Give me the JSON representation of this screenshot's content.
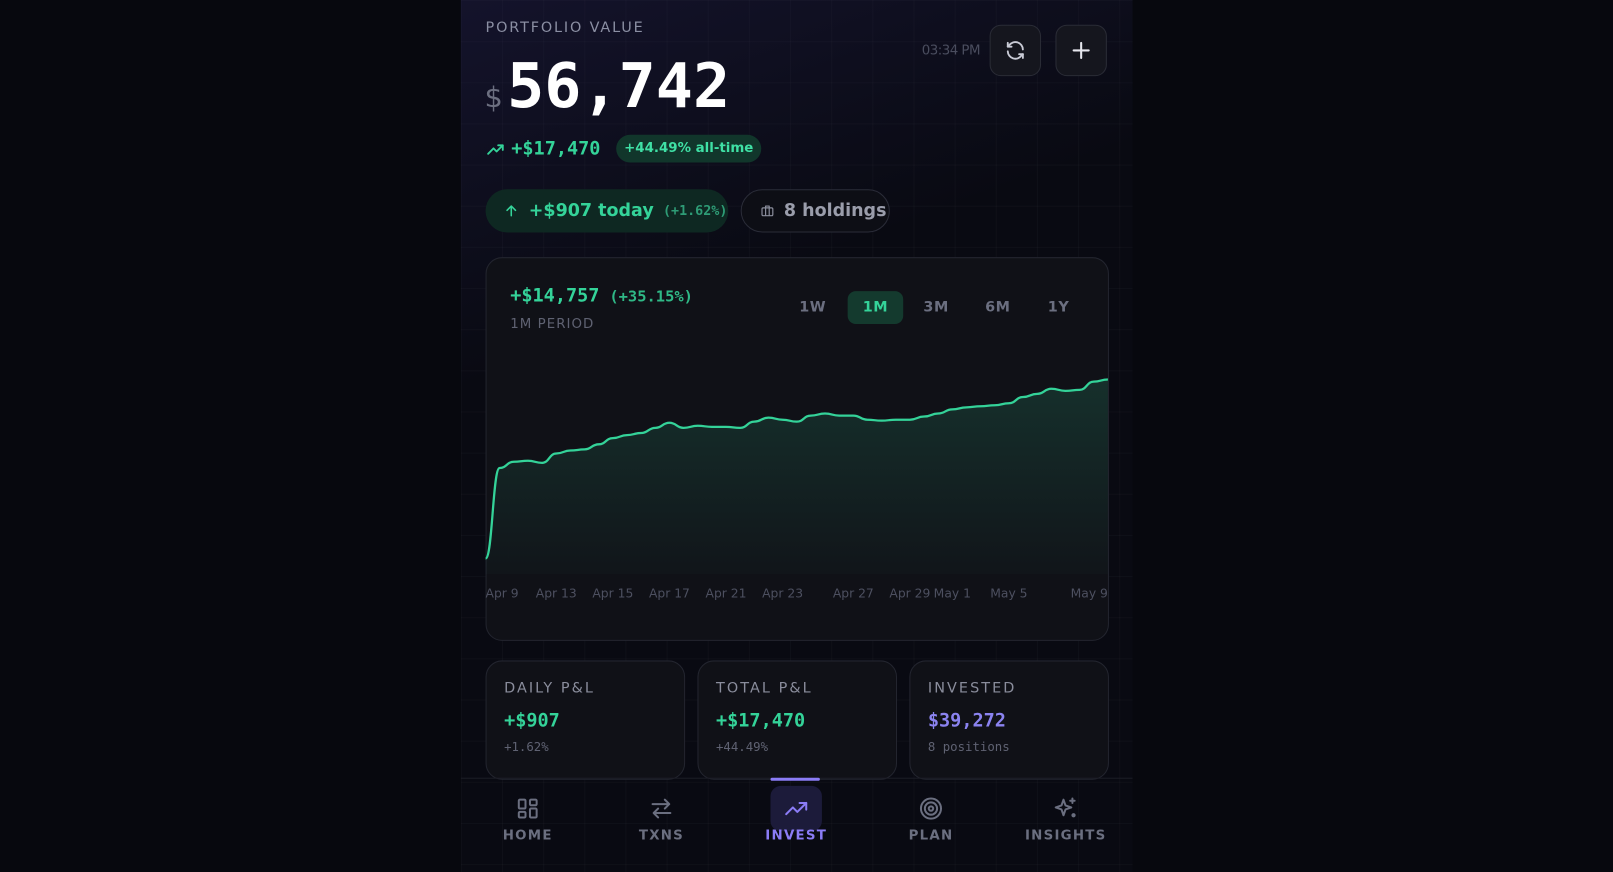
{
  "header": {
    "label": "PORTFOLIO VALUE",
    "time": "03:34 PM",
    "currency": "$",
    "value": "56,742",
    "all_time_change": "+$17,470",
    "all_time_pct": "+44.49% all-time"
  },
  "pills": {
    "today": "+$907 today",
    "today_pct": "(+1.62%)",
    "holdings": "8 holdings"
  },
  "chart_card": {
    "change": "+$14,757",
    "change_pct": "(+35.15%)",
    "period_label": "1M PERIOD",
    "ranges": [
      "1W",
      "1M",
      "3M",
      "6M",
      "1Y"
    ],
    "active_range": 1
  },
  "chart_data": {
    "type": "area",
    "color": "#34d399",
    "values": [
      41985,
      49450,
      49960,
      50040,
      49870,
      50640,
      50890,
      50980,
      51400,
      51910,
      52160,
      52330,
      52760,
      53180,
      52760,
      52930,
      52840,
      52840,
      52760,
      53270,
      53600,
      53430,
      53270,
      53770,
      53940,
      53770,
      53770,
      53430,
      53350,
      53430,
      53430,
      53690,
      53940,
      54280,
      54450,
      54540,
      54620,
      54790,
      55300,
      55560,
      55980,
      55810,
      55890,
      56570,
      56742
    ],
    "xlim": [
      0,
      44
    ],
    "xticks": [
      {
        "value": 0,
        "label": "Apr 9"
      },
      {
        "value": 5,
        "label": "Apr 13"
      },
      {
        "value": 9,
        "label": "Apr 15"
      },
      {
        "value": 13,
        "label": "Apr 17"
      },
      {
        "value": 17,
        "label": "Apr 21"
      },
      {
        "value": 21,
        "label": "Apr 23"
      },
      {
        "value": 26,
        "label": "Apr 27"
      },
      {
        "value": 30,
        "label": "Apr 29"
      },
      {
        "value": 33,
        "label": "May 1"
      },
      {
        "value": 37,
        "label": "May 5"
      },
      {
        "value": 44,
        "label": "May 9"
      }
    ],
    "ylim": [
      40700,
      59200
    ]
  },
  "stats": [
    {
      "label": "DAILY P&L",
      "value": "+$907",
      "sub": "+1.62%"
    },
    {
      "label": "TOTAL P&L",
      "value": "+$17,470",
      "sub": "+44.49%"
    },
    {
      "label": "INVESTED",
      "value": "$39,272",
      "sub": "8 positions"
    }
  ],
  "nav": {
    "items": [
      "HOME",
      "TXNS",
      "INVEST",
      "PLAN",
      "INSIGHTS"
    ],
    "active": 2
  }
}
